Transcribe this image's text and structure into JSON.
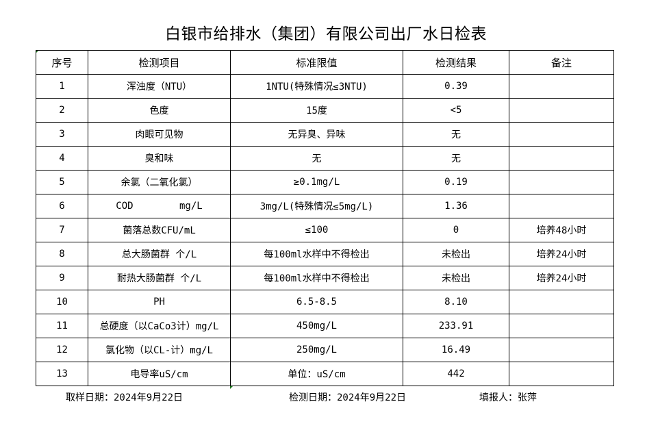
{
  "title": "白银市给排水（集团）有限公司出厂水日检表",
  "headers": [
    "序号",
    "检测项目",
    "标准限值",
    "检测结果",
    "备注"
  ],
  "rows": [
    [
      "1",
      "浑浊度（NTU）",
      "1NTU(特殊情况≤3NTU)",
      "0.39",
      ""
    ],
    [
      "2",
      "色度",
      "15度",
      "<5",
      ""
    ],
    [
      "3",
      "肉眼可见物",
      "无异臭、异味",
      "无",
      ""
    ],
    [
      "4",
      "臭和味",
      "无",
      "无",
      ""
    ],
    [
      "5",
      "余氯（二氧化氯）",
      "≥0.1mg/L",
      "0.19",
      ""
    ],
    [
      "6",
      "COD        mg/L",
      "3mg/L(特殊情况≤5mg/L)",
      "1.36",
      ""
    ],
    [
      "7",
      "菌落总数CFU/mL",
      "≤100",
      "0",
      "培养48小时"
    ],
    [
      "8",
      "总大肠菌群 个/L",
      "每100ml水样中不得检出",
      "未检出",
      "培养24小时"
    ],
    [
      "9",
      "耐热大肠菌群 个/L",
      "每100ml水样中不得检出",
      "未检出",
      "培养24小时"
    ],
    [
      "10",
      "PH",
      "6.5-8.5",
      "8.10",
      ""
    ],
    [
      "11",
      "总硬度（以CaCo3计）mg/L",
      "450mg/L",
      "233.91",
      ""
    ],
    [
      "12",
      "氯化物（以CL-计）mg/L",
      "250mg/L",
      "16.49",
      ""
    ],
    [
      "13",
      "电导率uS/cm",
      "单位：uS/cm",
      "442",
      ""
    ]
  ],
  "footer": {
    "sampling_date": "取样日期：2024年9月22日",
    "test_date": "检测日期：2024年9月22日",
    "reporter": "填报人：张萍"
  }
}
